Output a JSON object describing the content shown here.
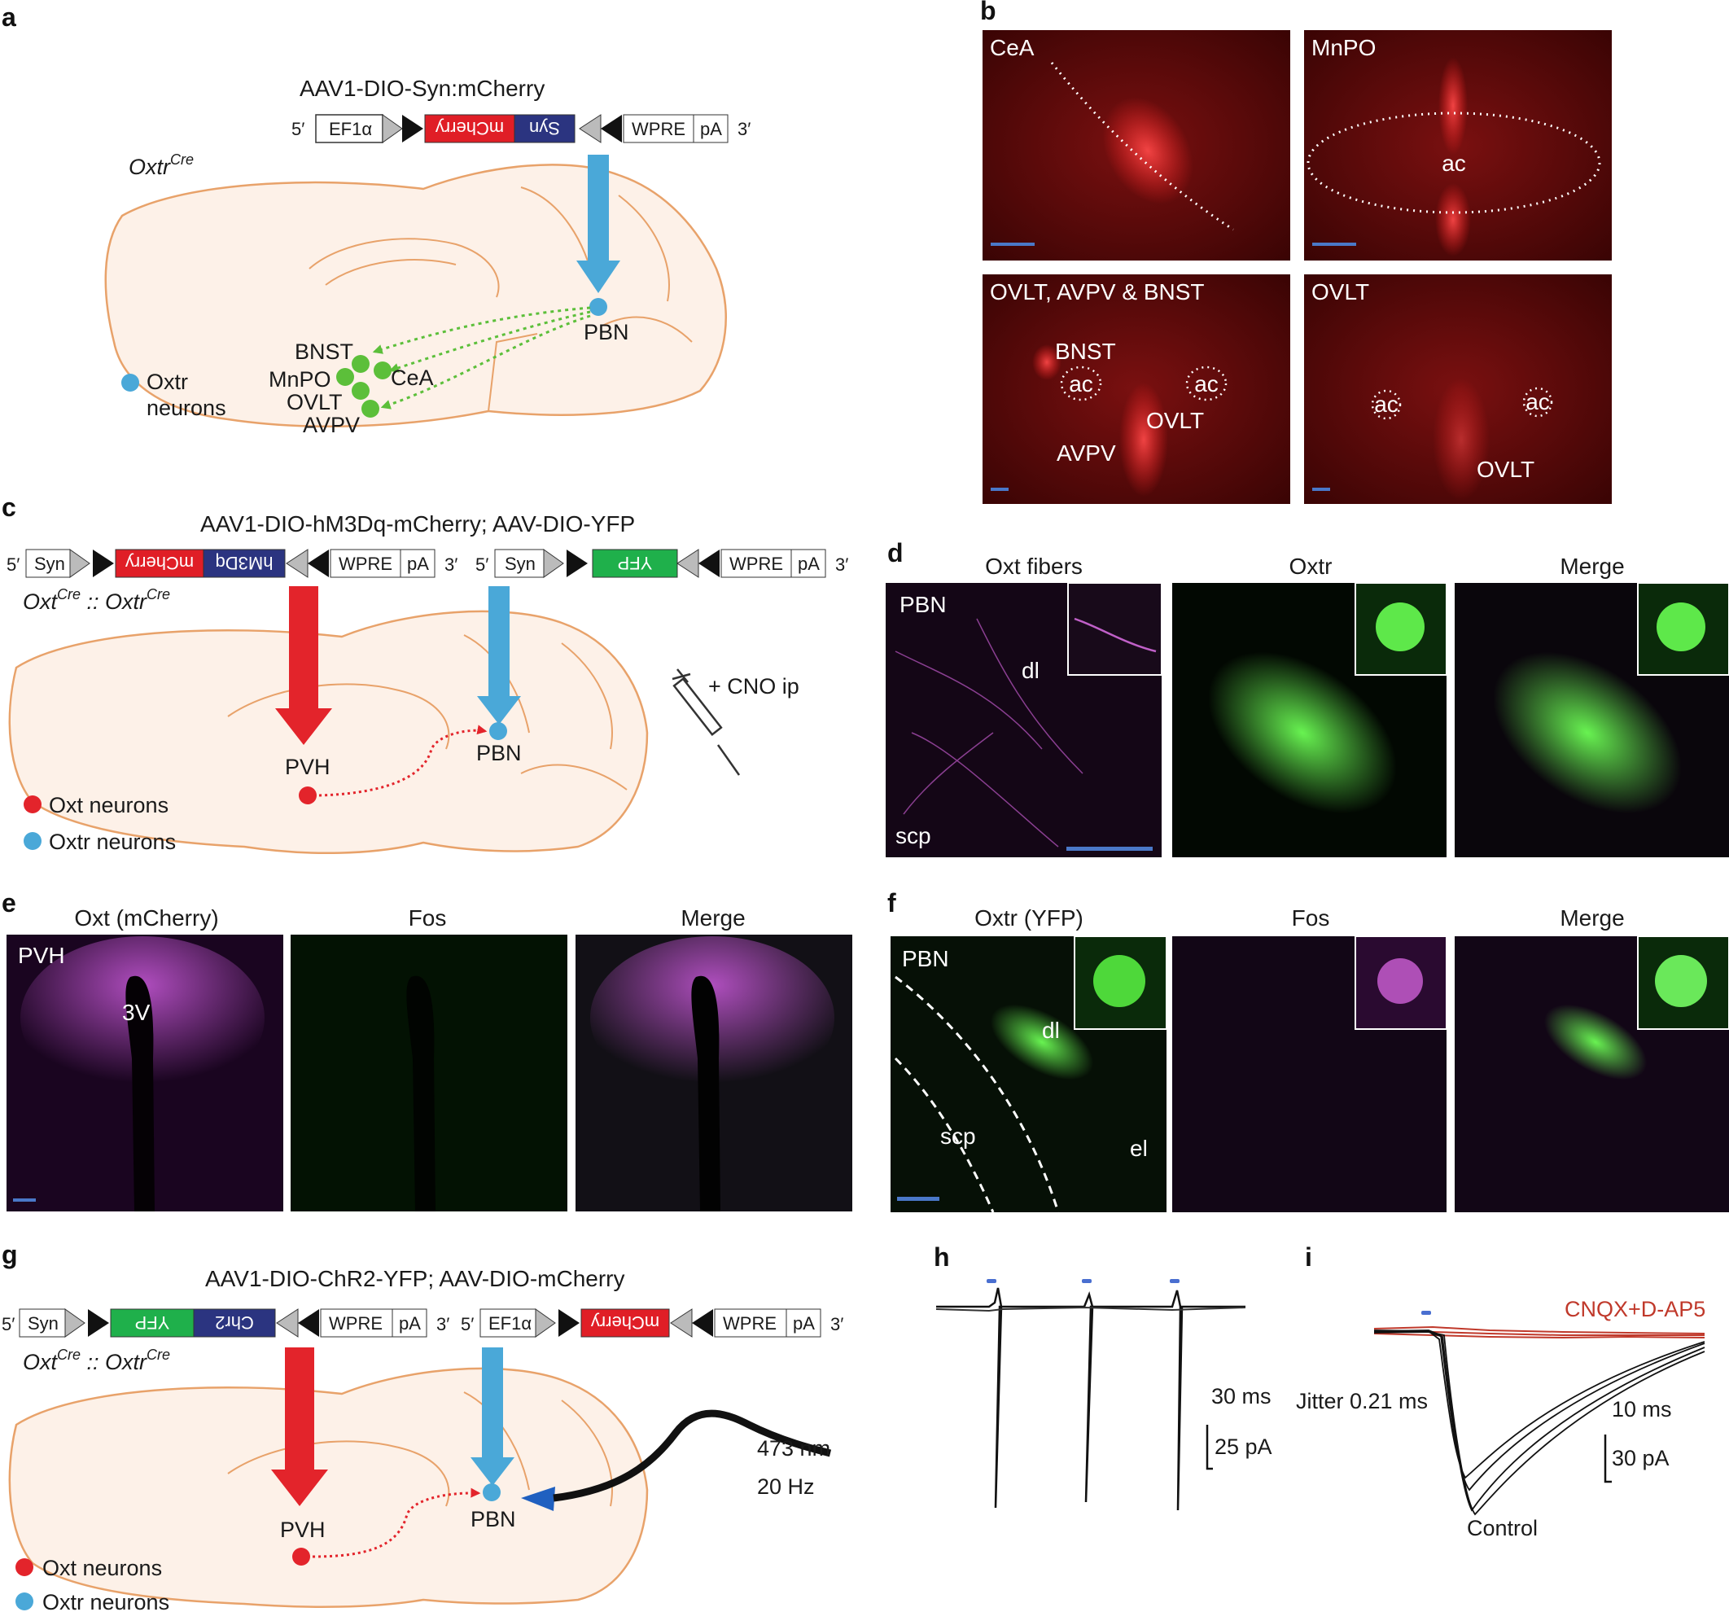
{
  "panel_letters": [
    "a",
    "b",
    "c",
    "d",
    "e",
    "f",
    "g",
    "h",
    "i"
  ],
  "panel_a": {
    "construct_title": "AAV1-DIO-Syn:mCherry",
    "prime5": "5′",
    "prime3": "3′",
    "boxes": [
      "EF1α",
      "mCherry",
      "Syn",
      "WPRE",
      "pA"
    ],
    "mouse_line": "Oxtr",
    "mouse_sup": "Cre",
    "regions": [
      "BNST",
      "MnPO",
      "OVLT",
      "AVPV",
      "CeA"
    ],
    "pbn": "PBN",
    "legend": [
      "Oxtr",
      "neurons"
    ]
  },
  "panel_b": {
    "images": [
      {
        "title": "CeA"
      },
      {
        "title": "MnPO",
        "labels": [
          "ac"
        ]
      },
      {
        "title": "OVLT, AVPV & BNST",
        "labels": [
          "BNST",
          "ac",
          "ac",
          "OVLT",
          "AVPV"
        ]
      },
      {
        "title": "OVLT",
        "labels": [
          "ac",
          "ac",
          "OVLT"
        ]
      }
    ]
  },
  "panel_c": {
    "construct_title": "AAV1-DIO-hM3Dq-mCherry; AAV-DIO-YFP",
    "boxes1": [
      "Syn",
      "mCherry",
      "hM3Dq",
      "WPRE",
      "pA"
    ],
    "boxes2": [
      "Syn",
      "YFP",
      "WPRE",
      "pA"
    ],
    "prime5": "5′",
    "prime3": "3′",
    "mouse_line": "Oxt",
    "mouse_sup": "Cre",
    "mouse_sep": " :: Oxtr",
    "pvh": "PVH",
    "pbn": "PBN",
    "cno": "+ CNO ip",
    "legend": [
      "Oxt neurons",
      "Oxtr neurons"
    ]
  },
  "panel_d": {
    "titles": [
      "Oxt fibers",
      "Oxtr",
      "Merge"
    ],
    "labels": [
      "PBN",
      "dl",
      "scp"
    ]
  },
  "panel_e": {
    "titles": [
      "Oxt (mCherry)",
      "Fos",
      "Merge"
    ],
    "labels": [
      "PVH",
      "3V"
    ]
  },
  "panel_f": {
    "titles": [
      "Oxtr (YFP)",
      "Fos",
      "Merge"
    ],
    "labels": [
      "PBN",
      "dl",
      "scp",
      "el"
    ]
  },
  "panel_g": {
    "construct_title": "AAV1-DIO-ChR2-YFP; AAV-DIO-mCherry",
    "boxes1": [
      "Syn",
      "YFP",
      "Chr2",
      "WPRE",
      "pA"
    ],
    "boxes2": [
      "EF1α",
      "mCherry",
      "WPRE",
      "pA"
    ],
    "prime5": "5′",
    "prime3": "3′",
    "mouse_line": "Oxt",
    "mouse_sup": "Cre",
    "mouse_sep": " :: Oxtr",
    "pvh": "PVH",
    "pbn": "PBN",
    "laser": [
      "473 nm",
      "20 Hz"
    ],
    "legend": [
      "Oxt neurons",
      "Oxtr neurons"
    ]
  },
  "panel_h": {
    "scale_time": "30 ms",
    "scale_amp": "25 pA"
  },
  "panel_i": {
    "drug": "CNQX+D-AP5",
    "jitter": "Jitter 0.21 ms",
    "scale_time": "10 ms",
    "scale_amp": "30 pA",
    "control": "Control"
  },
  "colors": {
    "brain_fill": "#fdf1e8",
    "brain_line": "#e8a26a",
    "oxt": "#e3242b",
    "oxtr": "#4aa8d8",
    "green": "#5cbf3a",
    "mcherry_box": "#e01e26",
    "syn_box": "#2b3480",
    "yfp_box": "#1fb04b",
    "red_tissue": "#5a0a0a",
    "drug_trace": "#c0392b"
  }
}
